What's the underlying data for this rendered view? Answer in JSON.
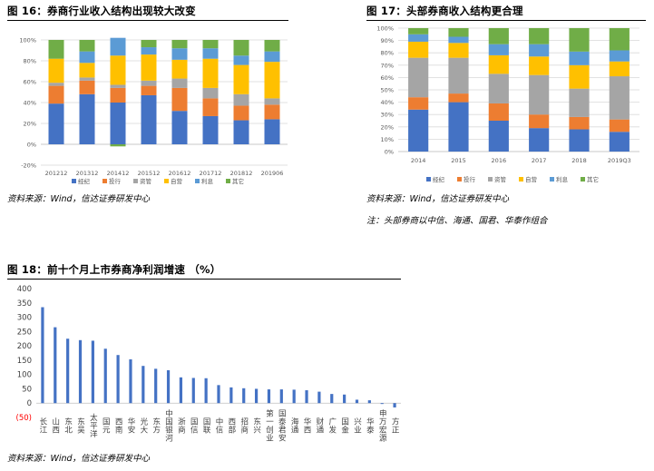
{
  "fig16": {
    "title": "图 16：券商行业收入结构出现较大改变",
    "source": "资料来源：Wind，信达证券研发中心"
  },
  "fig17": {
    "title": "图 17：头部券商收入结构更合理",
    "source": "资料来源：Wind，信达证券研发中心",
    "note": "注：头部券商以中信、海通、国君、华泰作组合"
  },
  "fig18": {
    "title": "图 18：前十个月上市券商净利润增速 （%）",
    "source": "资料来源：Wind，信达证券研发中心"
  },
  "chart_data": [
    {
      "type": "bar",
      "stacked": true,
      "categories": [
        "201212",
        "201312",
        "201412",
        "201512",
        "201612",
        "201712",
        "201812",
        "201906"
      ],
      "ylim": [
        -20,
        100
      ],
      "ytick_step": 20,
      "ytick_suffix": "%",
      "grid": true,
      "legend_position": "bottom",
      "series": [
        {
          "name": "经纪",
          "color": "#4472C4",
          "values": [
            39,
            48,
            40,
            47,
            32,
            27,
            23,
            24
          ]
        },
        {
          "name": "投行",
          "color": "#ED7D31",
          "values": [
            17,
            13,
            14,
            9,
            22,
            17,
            14,
            14
          ]
        },
        {
          "name": "资管",
          "color": "#A5A5A5",
          "values": [
            3,
            3,
            3,
            5,
            9,
            10,
            11,
            6
          ]
        },
        {
          "name": "自营",
          "color": "#FFC000",
          "values": [
            23,
            14,
            28,
            25,
            18,
            28,
            28,
            35
          ]
        },
        {
          "name": "利息",
          "color": "#5B9BD5",
          "values": [
            0,
            11,
            17,
            7,
            11,
            10,
            9,
            10
          ]
        },
        {
          "name": "其它",
          "color": "#70AD47",
          "values": [
            18,
            11,
            -2,
            7,
            8,
            8,
            15,
            11
          ]
        }
      ]
    },
    {
      "type": "bar",
      "stacked": true,
      "categories": [
        "2014",
        "2015",
        "2016",
        "2017",
        "2018",
        "2019Q3"
      ],
      "ylim": [
        0,
        100
      ],
      "ytick_step": 10,
      "ytick_suffix": "%",
      "grid": true,
      "legend_position": "bottom",
      "series": [
        {
          "name": "经纪",
          "color": "#4472C4",
          "values": [
            34,
            40,
            25,
            19,
            18,
            16
          ]
        },
        {
          "name": "投行",
          "color": "#ED7D31",
          "values": [
            10,
            7,
            14,
            11,
            10,
            10
          ]
        },
        {
          "name": "资管",
          "color": "#A5A5A5",
          "values": [
            32,
            29,
            24,
            32,
            23,
            35
          ]
        },
        {
          "name": "自营",
          "color": "#FFC000",
          "values": [
            13,
            12,
            15,
            15,
            19,
            12
          ]
        },
        {
          "name": "利息",
          "color": "#5B9BD5",
          "values": [
            6,
            5,
            9,
            10,
            11,
            9
          ]
        },
        {
          "name": "其它",
          "color": "#70AD47",
          "values": [
            5,
            7,
            13,
            13,
            19,
            18
          ]
        }
      ]
    },
    {
      "type": "bar",
      "categories": [
        "长江",
        "山西",
        "东北",
        "东吴",
        "太平洋",
        "国元",
        "西南",
        "华安",
        "光大",
        "东方",
        "中国银河",
        "浙商",
        "国信",
        "国联",
        "中信",
        "西部",
        "招商",
        "东兴",
        "第一创业",
        "国泰君安",
        "海通",
        "华西",
        "财通",
        "广发",
        "国金",
        "兴业",
        "华泰",
        "申万宏源",
        "方正"
      ],
      "values": [
        335,
        265,
        225,
        220,
        218,
        190,
        168,
        153,
        130,
        120,
        115,
        90,
        88,
        87,
        63,
        55,
        52,
        50,
        48,
        48,
        47,
        45,
        40,
        32,
        30,
        12,
        10,
        -3,
        -15
      ],
      "ylim": [
        -50,
        400
      ],
      "ytick_step": 50,
      "color": "#4472C4",
      "grid": false
    }
  ]
}
